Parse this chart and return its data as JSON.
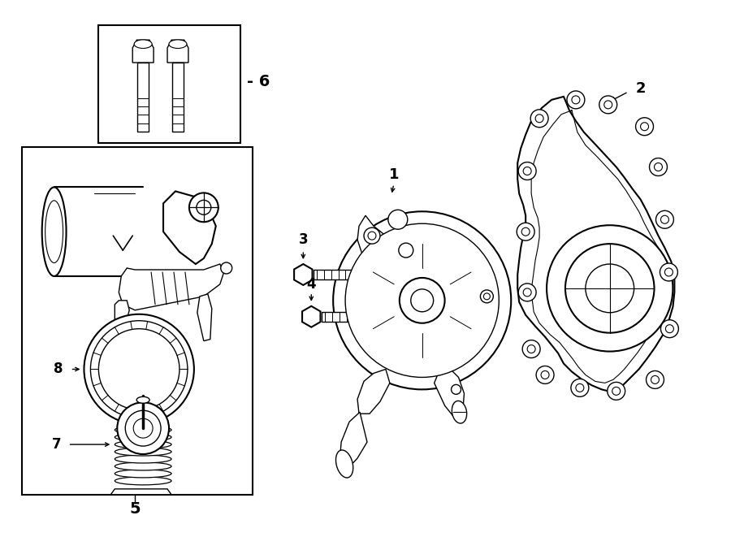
{
  "bg_color": "#ffffff",
  "line_color": "#000000",
  "lw": 1.0,
  "lw_thick": 1.5,
  "fig_w": 9.0,
  "fig_h": 6.61,
  "xmax": 900,
  "ymax": 661
}
